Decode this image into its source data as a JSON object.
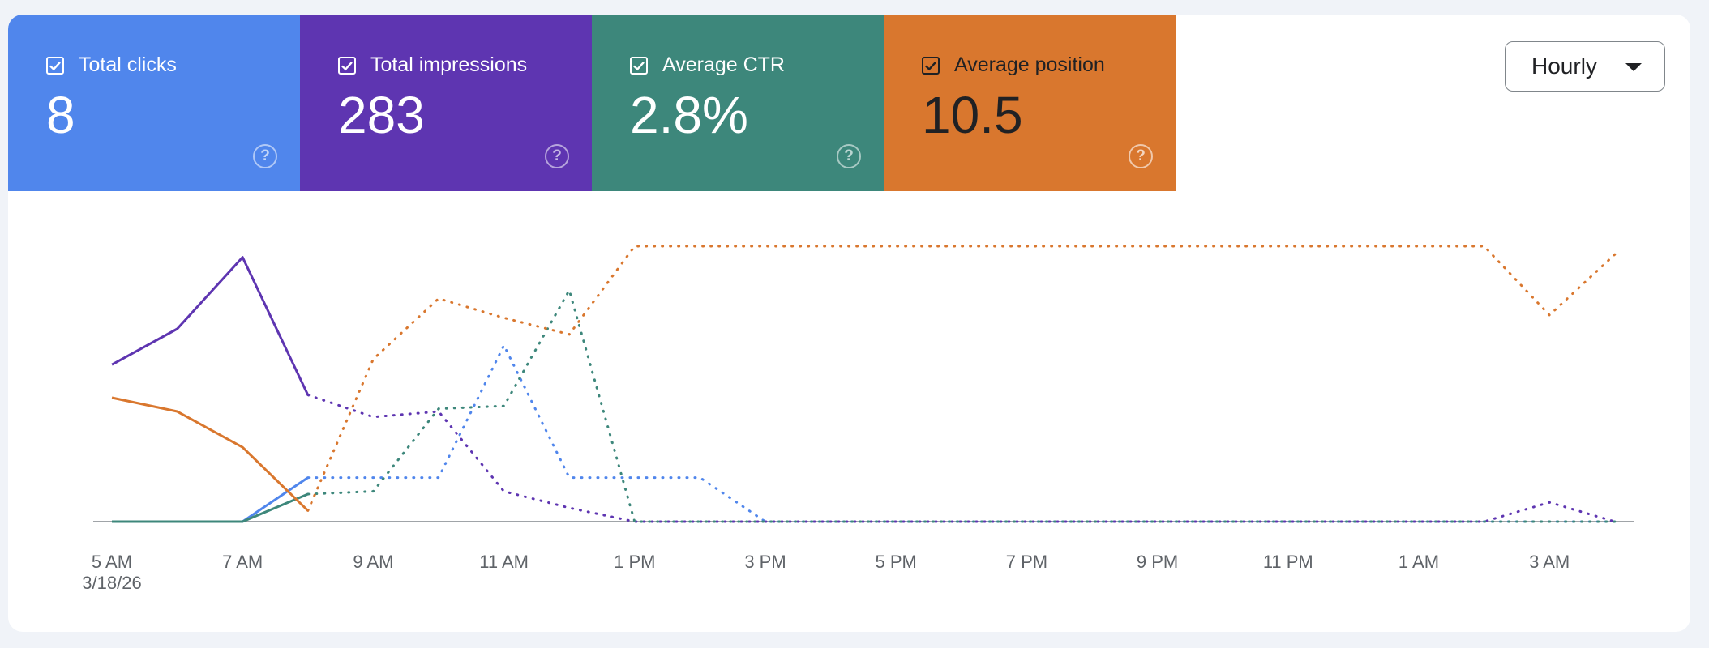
{
  "metrics": [
    {
      "label": "Total clicks",
      "value": "8",
      "color": "#5086ec",
      "checked": true
    },
    {
      "label": "Total impressions",
      "value": "283",
      "color": "#5e35b1",
      "checked": true
    },
    {
      "label": "Average CTR",
      "value": "2.8%",
      "color": "#3d877b",
      "checked": true
    },
    {
      "label": "Average position",
      "value": "10.5",
      "color": "#d9772e",
      "checked": true
    }
  ],
  "granularity": {
    "selected": "Hourly",
    "icon": "caret-down-icon"
  },
  "icons": {
    "checkbox": "checkbox-checked-icon",
    "help": "help-icon"
  },
  "chart_data": {
    "type": "line",
    "title": "",
    "xlabel": "",
    "ylabel": "",
    "x_labels": [
      "5 AM",
      "7 AM",
      "9 AM",
      "11 AM",
      "1 PM",
      "3 PM",
      "5 PM",
      "7 PM",
      "9 PM",
      "11 PM",
      "1 AM",
      "3 AM"
    ],
    "x_sublabel": "3/18/26",
    "hours": 24,
    "solid_until_index": 3,
    "ylim": [
      0,
      100
    ],
    "grid": false,
    "series": [
      {
        "name": "Total clicks",
        "color": "#5086ec",
        "values": [
          0,
          0,
          0,
          16,
          16,
          16,
          64,
          16,
          16,
          16,
          0,
          0,
          0,
          0,
          0,
          0,
          0,
          0,
          0,
          0,
          0,
          0,
          0,
          0
        ]
      },
      {
        "name": "Total impressions",
        "color": "#5e35b1",
        "values": [
          57,
          70,
          96,
          46,
          38,
          40,
          11,
          5,
          0,
          0,
          0,
          0,
          0,
          0,
          0,
          0,
          0,
          0,
          0,
          0,
          0,
          0,
          7,
          0
        ]
      },
      {
        "name": "Average CTR",
        "color": "#3d877b",
        "values": [
          0,
          0,
          0,
          10,
          11,
          41,
          42,
          84,
          0,
          0,
          0,
          0,
          0,
          0,
          0,
          0,
          0,
          0,
          0,
          0,
          0,
          0,
          0,
          0
        ]
      },
      {
        "name": "Average position",
        "color": "#d9772e",
        "values": [
          45,
          40,
          27,
          4,
          59,
          81,
          74,
          68,
          100,
          100,
          100,
          100,
          100,
          100,
          100,
          100,
          100,
          100,
          100,
          100,
          100,
          100,
          75,
          97
        ]
      }
    ]
  }
}
